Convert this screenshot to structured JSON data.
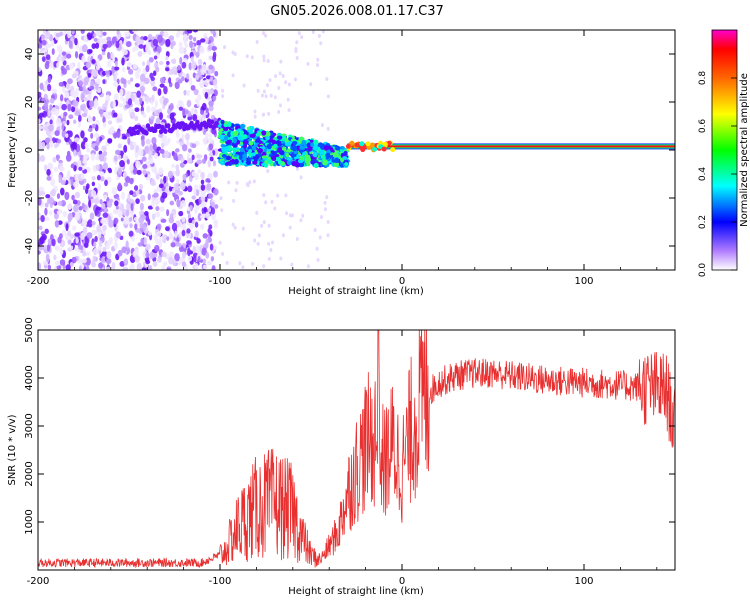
{
  "title": "GN05.2026.008.01.17.C37",
  "chart_data": [
    {
      "type": "heatmap",
      "name": "spectrogram",
      "xlabel": "Height of straight line (km)",
      "ylabel": "Frequency (Hz)",
      "xlim": [
        -200,
        150
      ],
      "ylim": [
        -50,
        50
      ],
      "xticks": [
        -200,
        -100,
        0,
        100
      ],
      "yticks": [
        -40,
        -20,
        0,
        20,
        40
      ],
      "colorbar": {
        "label": "Normalized spectral amplitude",
        "range": [
          0,
          1
        ],
        "ticks": [
          0.0,
          0.2,
          0.4,
          0.6,
          0.8
        ],
        "stops": [
          "#ffffff",
          "#7000ff",
          "#0000ff",
          "#00ffff",
          "#00ff00",
          "#ffff00",
          "#ff6600",
          "#ff0000",
          "#ff00cc"
        ]
      },
      "regions": [
        {
          "description": "scattered noise",
          "x": [
            -200,
            -102
          ],
          "y": [
            -50,
            50
          ],
          "amplitude": 0.1
        },
        {
          "description": "broad signal track",
          "x": [
            -100,
            -30
          ],
          "y_start": 3,
          "y_end": -3,
          "amplitude": 0.45
        },
        {
          "description": "narrow carrier line",
          "x": [
            -30,
            150
          ],
          "y": 1.5,
          "amplitude": 0.9
        }
      ]
    },
    {
      "type": "line",
      "name": "snr",
      "xlabel": "Height of straight line (km)",
      "ylabel": "SNR (10 * v/v)",
      "xlim": [
        -200,
        150
      ],
      "ylim": [
        0,
        5000
      ],
      "xticks": [
        -200,
        -100,
        0,
        100
      ],
      "yticks": [
        1000,
        2000,
        3000,
        4000,
        5000
      ],
      "color": "#e83030",
      "series": [
        {
          "name": "SNR envelope",
          "x": [
            -200,
            -110,
            -98,
            -90,
            -80,
            -70,
            -60,
            -55,
            -50,
            -45,
            -35,
            -30,
            -20,
            -15,
            -10,
            -5,
            0,
            5,
            10,
            20,
            30,
            40,
            50,
            60,
            80,
            100,
            120,
            135,
            145,
            150
          ],
          "y": [
            150,
            150,
            350,
            900,
            1300,
            1400,
            1200,
            700,
            300,
            200,
            800,
            1600,
            2600,
            2800,
            2200,
            2600,
            2100,
            2900,
            3500,
            3900,
            4050,
            4100,
            4100,
            4050,
            3950,
            3900,
            3850,
            3800,
            3750,
            3000
          ]
        }
      ]
    }
  ]
}
